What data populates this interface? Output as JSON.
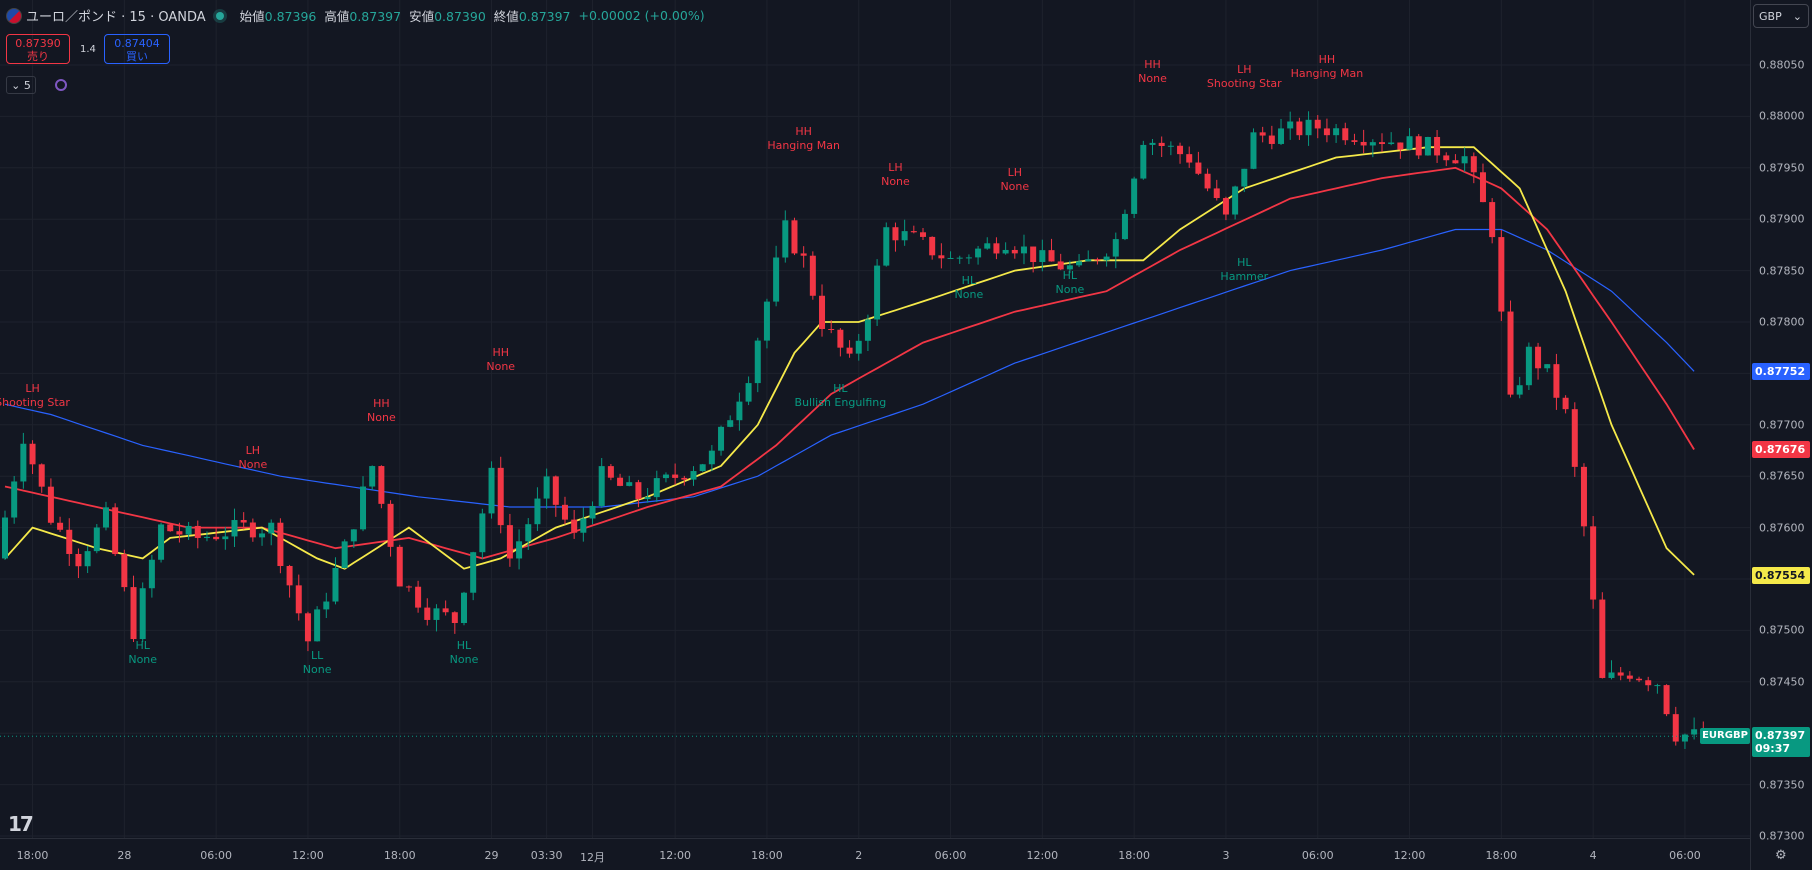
{
  "header": {
    "symbol_title": "ユーロ／ポンド · 15 · OANDA",
    "flag_icon": "eur-gbp-flag-icon",
    "ohlc": [
      {
        "key": "始値",
        "value": "0.87396"
      },
      {
        "key": "高値",
        "value": "0.87397"
      },
      {
        "key": "安値",
        "value": "0.87390"
      },
      {
        "key": "終値",
        "value": "0.87397"
      }
    ],
    "change": "+0.00002 (+0.00%)"
  },
  "trade": {
    "sell_price": "0.87390",
    "sell_label": "売り",
    "buy_price": "0.87404",
    "buy_label": "買い",
    "spread": "1.4"
  },
  "indicators_collapse": {
    "count": "5"
  },
  "currency_button": "GBP",
  "price_axis": {
    "min": 0.8732,
    "max": 0.88075,
    "ticks": [
      "0.88050",
      "0.88000",
      "0.87950",
      "0.87900",
      "0.87850",
      "0.87800",
      "0.87750",
      "0.87700",
      "0.87650",
      "0.87600",
      "0.87550",
      "0.87500",
      "0.87450",
      "0.87400",
      "0.87350",
      "0.87300"
    ]
  },
  "time_axis": {
    "ticks": [
      {
        "label": "18:00",
        "i": 3
      },
      {
        "label": "28",
        "i": 13
      },
      {
        "label": "06:00",
        "i": 23
      },
      {
        "label": "12:00",
        "i": 33
      },
      {
        "label": "18:00",
        "i": 43
      },
      {
        "label": "29",
        "i": 53
      },
      {
        "label": "03:30",
        "i": 59
      },
      {
        "label": "12月",
        "i": 64
      },
      {
        "label": "12:00",
        "i": 73
      },
      {
        "label": "18:00",
        "i": 83
      },
      {
        "label": "2",
        "i": 93
      },
      {
        "label": "06:00",
        "i": 103
      },
      {
        "label": "12:00",
        "i": 113
      },
      {
        "label": "18:00",
        "i": 123
      },
      {
        "label": "3",
        "i": 133
      },
      {
        "label": "06:00",
        "i": 143
      },
      {
        "label": "12:00",
        "i": 153
      },
      {
        "label": "18:00",
        "i": 163
      },
      {
        "label": "4",
        "i": 173
      },
      {
        "label": "06:00",
        "i": 183
      }
    ]
  },
  "badges": {
    "blue_ma": {
      "value": "0.87752",
      "color": "#2962ff"
    },
    "red_ma": {
      "value": "0.87676",
      "color": "#f23645"
    },
    "yellow_ma": {
      "value": "0.87554",
      "color": "#f5e94a"
    },
    "last_price": {
      "value": "0.87397",
      "countdown": "09:37",
      "color": "#089981",
      "symbol": "EURGBP"
    }
  },
  "annotations": [
    {
      "i": 3,
      "p": 0.87735,
      "top": "LH",
      "bottom": "Shooting Star",
      "color": "red"
    },
    {
      "i": 15,
      "p": 0.87485,
      "top": "HL",
      "bottom": "None",
      "color": "green"
    },
    {
      "i": 27,
      "p": 0.87675,
      "top": "LH",
      "bottom": "None",
      "color": "red"
    },
    {
      "i": 34,
      "p": 0.87475,
      "top": "LL",
      "bottom": "None",
      "color": "green"
    },
    {
      "i": 41,
      "p": 0.8772,
      "top": "HH",
      "bottom": "None",
      "color": "red"
    },
    {
      "i": 50,
      "p": 0.87485,
      "top": "HL",
      "bottom": "None",
      "color": "green"
    },
    {
      "i": 54,
      "p": 0.8777,
      "top": "HH",
      "bottom": "None",
      "color": "red"
    },
    {
      "i": 87,
      "p": 0.87985,
      "top": "HH",
      "bottom": "Hanging Man",
      "color": "red"
    },
    {
      "i": 91,
      "p": 0.87735,
      "top": "HL",
      "bottom": "Bullish Engulfing",
      "color": "green"
    },
    {
      "i": 97,
      "p": 0.8795,
      "top": "LH",
      "bottom": "None",
      "color": "red"
    },
    {
      "i": 105,
      "p": 0.8784,
      "top": "HL",
      "bottom": "None",
      "color": "green"
    },
    {
      "i": 110,
      "p": 0.87945,
      "top": "LH",
      "bottom": "None",
      "color": "red"
    },
    {
      "i": 116,
      "p": 0.87845,
      "top": "HL",
      "bottom": "None",
      "color": "green"
    },
    {
      "i": 125,
      "p": 0.8805,
      "top": "HH",
      "bottom": "None",
      "color": "red"
    },
    {
      "i": 135,
      "p": 0.87857,
      "top": "HL",
      "bottom": "Hammer",
      "color": "green"
    },
    {
      "i": 135,
      "p": 0.88045,
      "top": "LH",
      "bottom": "Shooting Star",
      "color": "red"
    },
    {
      "i": 144,
      "p": 0.88055,
      "top": "HH",
      "bottom": "Hanging Man",
      "color": "red"
    }
  ],
  "chart_data": {
    "type": "candlestick",
    "colors": {
      "up": "#089981",
      "down": "#f23645",
      "ma_fast": "#f5e94a",
      "ma_mid": "#f23645",
      "ma_slow": "#2962ff"
    },
    "anchors": [
      {
        "i": 0,
        "p": 0.8757
      },
      {
        "i": 3,
        "p": 0.8769
      },
      {
        "i": 6,
        "p": 0.8761
      },
      {
        "i": 9,
        "p": 0.8757
      },
      {
        "i": 12,
        "p": 0.8761
      },
      {
        "i": 15,
        "p": 0.875
      },
      {
        "i": 18,
        "p": 0.876
      },
      {
        "i": 22,
        "p": 0.8759
      },
      {
        "i": 27,
        "p": 0.876
      },
      {
        "i": 30,
        "p": 0.876
      },
      {
        "i": 34,
        "p": 0.8749
      },
      {
        "i": 38,
        "p": 0.8758
      },
      {
        "i": 41,
        "p": 0.8766
      },
      {
        "i": 44,
        "p": 0.8755
      },
      {
        "i": 47,
        "p": 0.8752
      },
      {
        "i": 50,
        "p": 0.8751
      },
      {
        "i": 54,
        "p": 0.8765
      },
      {
        "i": 56,
        "p": 0.8757
      },
      {
        "i": 60,
        "p": 0.8764
      },
      {
        "i": 63,
        "p": 0.8759
      },
      {
        "i": 66,
        "p": 0.8765
      },
      {
        "i": 70,
        "p": 0.8763
      },
      {
        "i": 74,
        "p": 0.8765
      },
      {
        "i": 78,
        "p": 0.8767
      },
      {
        "i": 82,
        "p": 0.8775
      },
      {
        "i": 86,
        "p": 0.8789
      },
      {
        "i": 88,
        "p": 0.8786
      },
      {
        "i": 90,
        "p": 0.878
      },
      {
        "i": 93,
        "p": 0.8776
      },
      {
        "i": 95,
        "p": 0.8781
      },
      {
        "i": 97,
        "p": 0.8789
      },
      {
        "i": 100,
        "p": 0.8788
      },
      {
        "i": 104,
        "p": 0.8786
      },
      {
        "i": 110,
        "p": 0.8788
      },
      {
        "i": 114,
        "p": 0.8786
      },
      {
        "i": 118,
        "p": 0.8785
      },
      {
        "i": 122,
        "p": 0.8788
      },
      {
        "i": 125,
        "p": 0.8798
      },
      {
        "i": 130,
        "p": 0.8796
      },
      {
        "i": 134,
        "p": 0.879
      },
      {
        "i": 137,
        "p": 0.8798
      },
      {
        "i": 144,
        "p": 0.8799
      },
      {
        "i": 150,
        "p": 0.8798
      },
      {
        "i": 156,
        "p": 0.8797
      },
      {
        "i": 160,
        "p": 0.8796
      },
      {
        "i": 163,
        "p": 0.8789
      },
      {
        "i": 165,
        "p": 0.8772
      },
      {
        "i": 167,
        "p": 0.8777
      },
      {
        "i": 169,
        "p": 0.8775
      },
      {
        "i": 171,
        "p": 0.8771
      },
      {
        "i": 173,
        "p": 0.876
      },
      {
        "i": 175,
        "p": 0.8745
      },
      {
        "i": 178,
        "p": 0.8746
      },
      {
        "i": 181,
        "p": 0.8745
      },
      {
        "i": 183,
        "p": 0.874
      },
      {
        "i": 185,
        "p": 0.87397
      }
    ],
    "ma_fast": [
      {
        "i": 0,
        "p": 0.8757
      },
      {
        "i": 3,
        "p": 0.876
      },
      {
        "i": 10,
        "p": 0.8758
      },
      {
        "i": 15,
        "p": 0.8757
      },
      {
        "i": 18,
        "p": 0.8759
      },
      {
        "i": 28,
        "p": 0.876
      },
      {
        "i": 34,
        "p": 0.8757
      },
      {
        "i": 37,
        "p": 0.8756
      },
      {
        "i": 44,
        "p": 0.876
      },
      {
        "i": 50,
        "p": 0.8756
      },
      {
        "i": 54,
        "p": 0.8757
      },
      {
        "i": 60,
        "p": 0.876
      },
      {
        "i": 70,
        "p": 0.8763
      },
      {
        "i": 78,
        "p": 0.8766
      },
      {
        "i": 82,
        "p": 0.877
      },
      {
        "i": 86,
        "p": 0.8777
      },
      {
        "i": 89,
        "p": 0.878
      },
      {
        "i": 93,
        "p": 0.878
      },
      {
        "i": 100,
        "p": 0.8782
      },
      {
        "i": 110,
        "p": 0.8785
      },
      {
        "i": 118,
        "p": 0.8786
      },
      {
        "i": 124,
        "p": 0.8786
      },
      {
        "i": 128,
        "p": 0.8789
      },
      {
        "i": 135,
        "p": 0.8793
      },
      {
        "i": 145,
        "p": 0.8796
      },
      {
        "i": 155,
        "p": 0.8797
      },
      {
        "i": 160,
        "p": 0.8797
      },
      {
        "i": 165,
        "p": 0.8793
      },
      {
        "i": 170,
        "p": 0.8783
      },
      {
        "i": 175,
        "p": 0.877
      },
      {
        "i": 181,
        "p": 0.8758
      },
      {
        "i": 184,
        "p": 0.87554
      }
    ],
    "ma_mid": [
      {
        "i": 0,
        "p": 0.8764
      },
      {
        "i": 5,
        "p": 0.8763
      },
      {
        "i": 10,
        "p": 0.8762
      },
      {
        "i": 20,
        "p": 0.876
      },
      {
        "i": 28,
        "p": 0.876
      },
      {
        "i": 36,
        "p": 0.8758
      },
      {
        "i": 44,
        "p": 0.8759
      },
      {
        "i": 52,
        "p": 0.8757
      },
      {
        "i": 60,
        "p": 0.8759
      },
      {
        "i": 70,
        "p": 0.8762
      },
      {
        "i": 78,
        "p": 0.8764
      },
      {
        "i": 84,
        "p": 0.8768
      },
      {
        "i": 90,
        "p": 0.8773
      },
      {
        "i": 100,
        "p": 0.8778
      },
      {
        "i": 110,
        "p": 0.8781
      },
      {
        "i": 120,
        "p": 0.8783
      },
      {
        "i": 128,
        "p": 0.8787
      },
      {
        "i": 140,
        "p": 0.8792
      },
      {
        "i": 150,
        "p": 0.8794
      },
      {
        "i": 158,
        "p": 0.8795
      },
      {
        "i": 163,
        "p": 0.8793
      },
      {
        "i": 168,
        "p": 0.8789
      },
      {
        "i": 175,
        "p": 0.878
      },
      {
        "i": 181,
        "p": 0.8772
      },
      {
        "i": 184,
        "p": 0.87676
      }
    ],
    "ma_slow": [
      {
        "i": 0,
        "p": 0.8772
      },
      {
        "i": 5,
        "p": 0.8771
      },
      {
        "i": 15,
        "p": 0.8768
      },
      {
        "i": 30,
        "p": 0.8765
      },
      {
        "i": 45,
        "p": 0.8763
      },
      {
        "i": 55,
        "p": 0.8762
      },
      {
        "i": 65,
        "p": 0.8762
      },
      {
        "i": 75,
        "p": 0.8763
      },
      {
        "i": 82,
        "p": 0.8765
      },
      {
        "i": 90,
        "p": 0.8769
      },
      {
        "i": 100,
        "p": 0.8772
      },
      {
        "i": 110,
        "p": 0.8776
      },
      {
        "i": 120,
        "p": 0.8779
      },
      {
        "i": 130,
        "p": 0.8782
      },
      {
        "i": 140,
        "p": 0.8785
      },
      {
        "i": 150,
        "p": 0.8787
      },
      {
        "i": 158,
        "p": 0.8789
      },
      {
        "i": 163,
        "p": 0.8789
      },
      {
        "i": 168,
        "p": 0.8787
      },
      {
        "i": 175,
        "p": 0.8783
      },
      {
        "i": 181,
        "p": 0.8778
      },
      {
        "i": 184,
        "p": 0.87752
      }
    ],
    "last_price": 0.87397,
    "ylim": [
      0.8732,
      0.88075
    ]
  }
}
